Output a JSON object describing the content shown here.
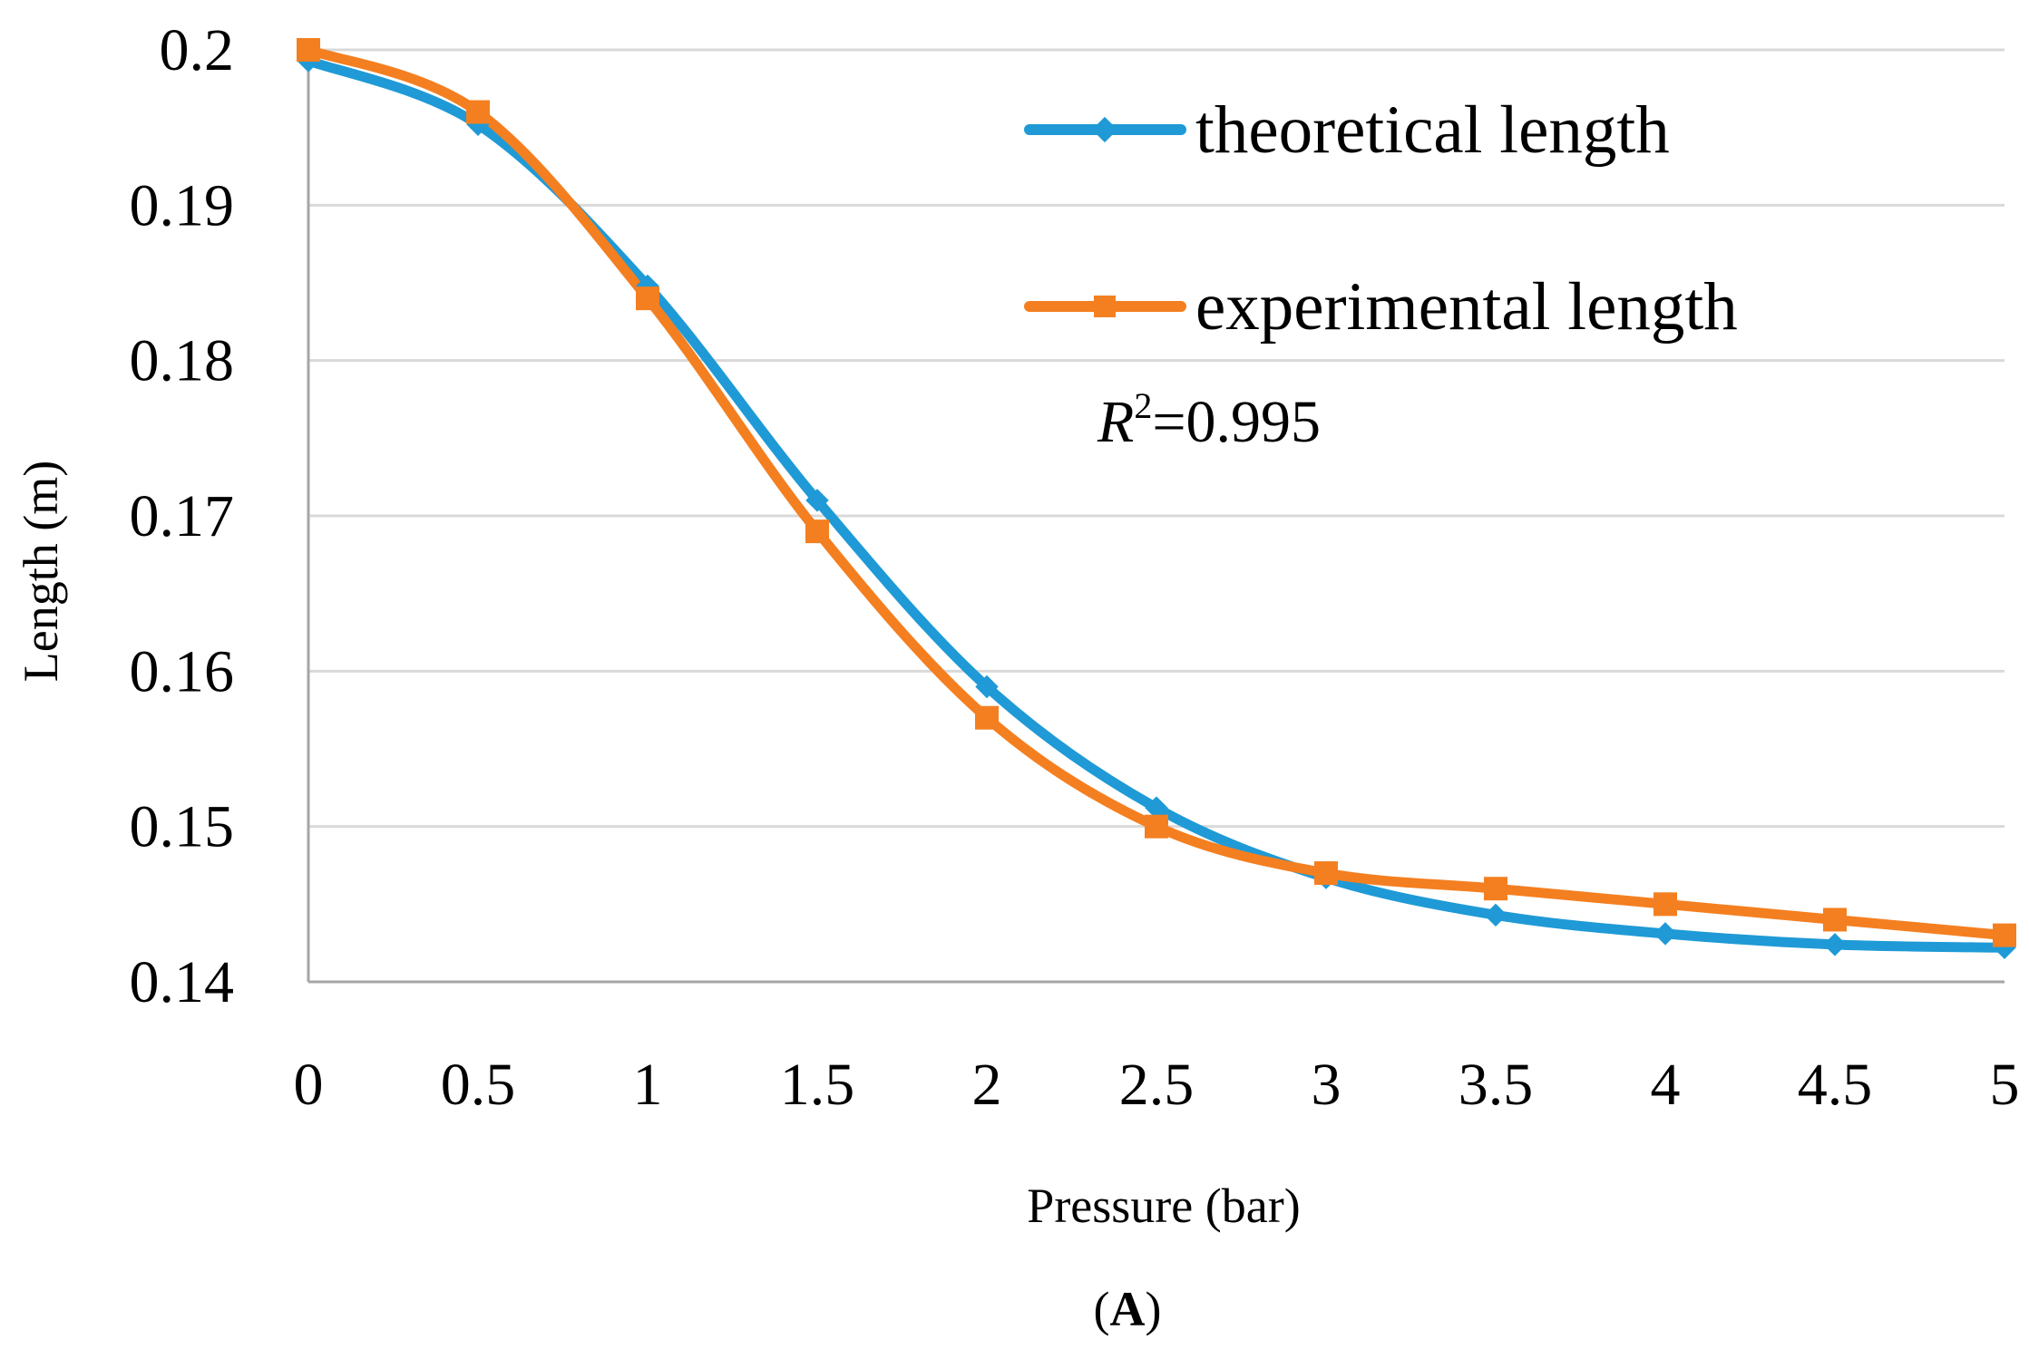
{
  "chart_data": {
    "type": "line",
    "xlabel": "Pressure (bar)",
    "ylabel": "Length (m)",
    "caption": {
      "open": "(",
      "letter": "A",
      "close": ")"
    },
    "x": [
      0,
      0.5,
      1,
      1.5,
      2,
      2.5,
      3,
      3.5,
      4,
      4.5,
      5
    ],
    "x_tick_labels": [
      "0",
      "0.5",
      "1",
      "1.5",
      "2",
      "2.5",
      "3",
      "3.5",
      "4",
      "4.5",
      "5"
    ],
    "y_tick_values": [
      0.14,
      0.15,
      0.16,
      0.17,
      0.18,
      0.19,
      0.2
    ],
    "y_tick_labels": [
      "0.14",
      "0.15",
      "0.16",
      "0.17",
      "0.18",
      "0.19",
      "0.2"
    ],
    "xlim": [
      0,
      5
    ],
    "ylim": [
      0.14,
      0.2
    ],
    "grid": true,
    "smooth": true,
    "legend_position": "top-right",
    "series": [
      {
        "name": "theoretical length",
        "color": "#1F9AD6",
        "marker": "diamond",
        "values": [
          0.1993,
          0.1952,
          0.1848,
          0.171,
          0.159,
          0.1512,
          0.1467,
          0.1443,
          0.1431,
          0.1424,
          0.1422
        ]
      },
      {
        "name": "experimental length",
        "color": "#F47F20",
        "marker": "square",
        "values": [
          0.2,
          0.196,
          0.184,
          0.169,
          0.157,
          0.15,
          0.147,
          0.146,
          0.145,
          0.144,
          0.143
        ]
      }
    ],
    "annotation": {
      "symbol": "R",
      "superscript": "2",
      "value_text": "=0.995"
    }
  },
  "colors": {
    "grid": "#D9D9D9",
    "axis": "#A6A6A6",
    "text": "#000000"
  }
}
